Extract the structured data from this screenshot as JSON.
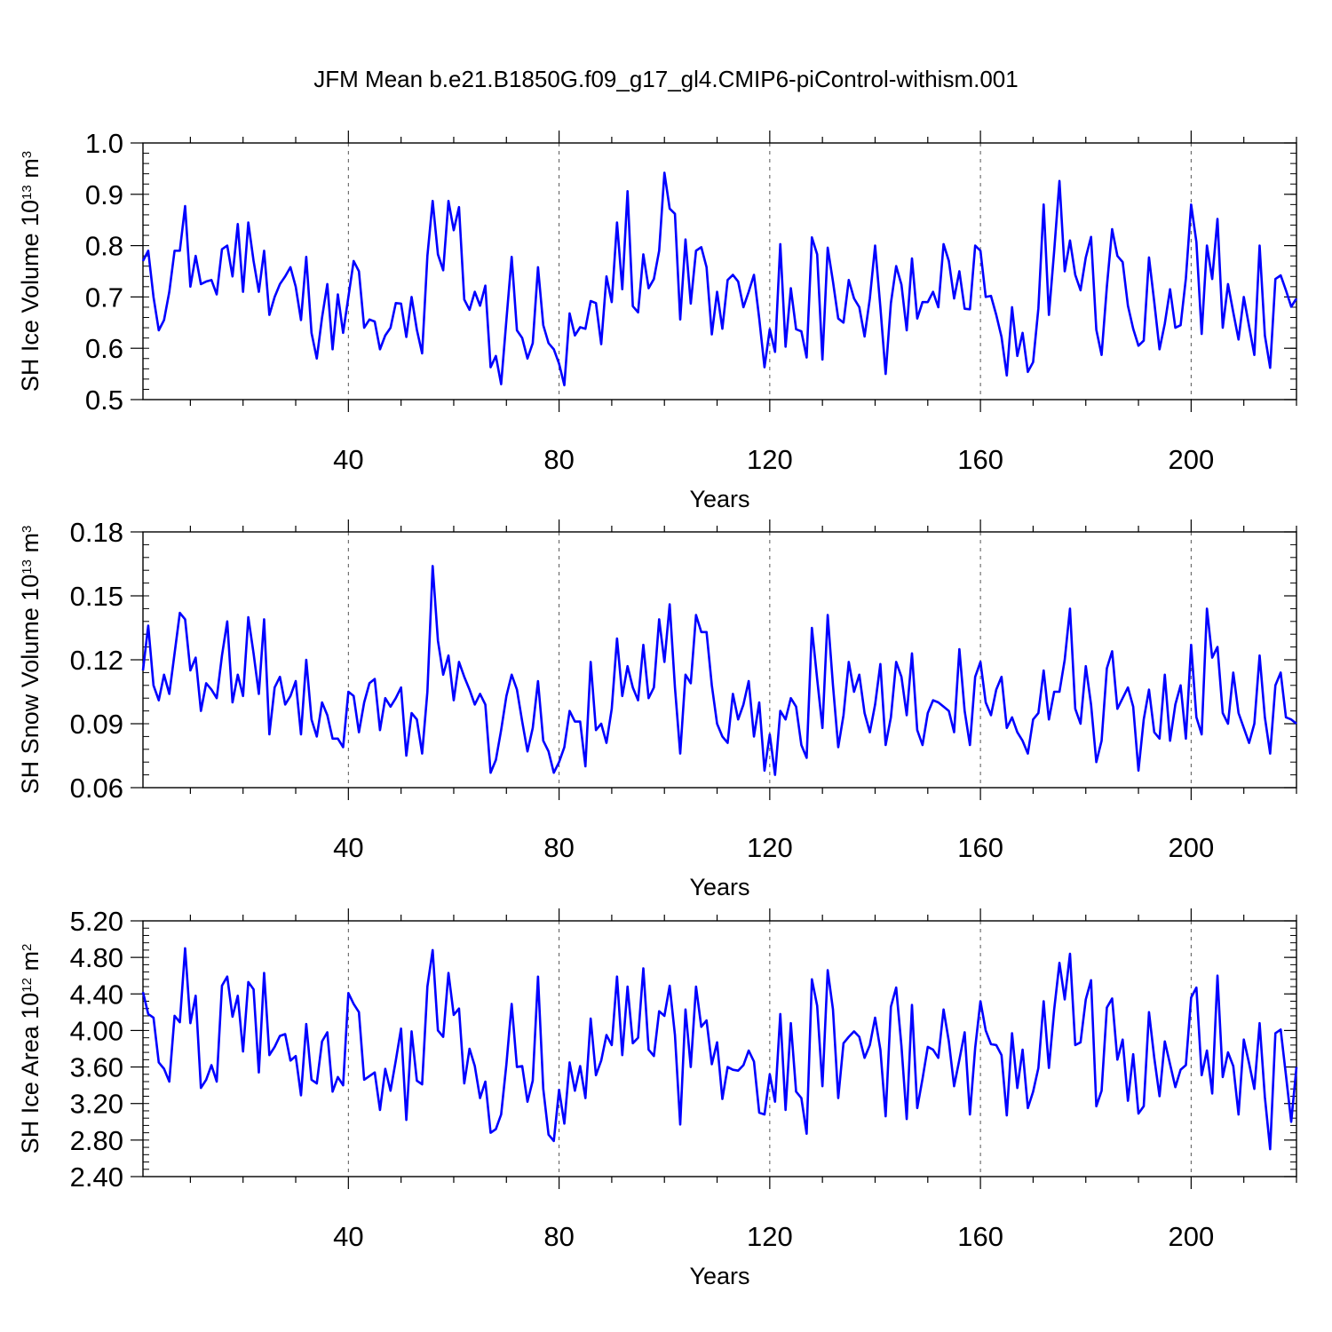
{
  "title": "JFM Mean b.e21.B1850G.f09_g17_gl4.CMIP6-piControl-withism.001",
  "colors": {
    "line": "#0000ff",
    "axis": "#000000",
    "grid": "#555555"
  },
  "chart_data": [
    {
      "type": "line",
      "name": "ice-volume",
      "ylabel": "SH Ice Volume 10",
      "ylabel_exp": "13",
      "ylabel_unit": " m",
      "ylabel_unit_exp": "3",
      "xlabel": "Years",
      "xlim": [
        1,
        220
      ],
      "ylim": [
        0.5,
        1.0
      ],
      "xticks": [
        40,
        80,
        120,
        160,
        200
      ],
      "xtick_labels": [
        "40",
        "80",
        "120",
        "160",
        "200"
      ],
      "yticks": [
        0.5,
        0.6,
        0.7,
        0.8,
        0.9,
        1.0
      ],
      "ytick_labels": [
        "0.5",
        "0.6",
        "0.7",
        "0.8",
        "0.9",
        "1.0"
      ],
      "y_minor_step": 0.02,
      "gridlines_x": "dashed vertical at major x ticks",
      "values": [
        0.77,
        0.79,
        0.7,
        0.635,
        0.655,
        0.71,
        0.79,
        0.79,
        0.877,
        0.72,
        0.78,
        0.725,
        0.73,
        0.733,
        0.705,
        0.793,
        0.8,
        0.74,
        0.842,
        0.71,
        0.845,
        0.77,
        0.71,
        0.79,
        0.665,
        0.7,
        0.725,
        0.74,
        0.758,
        0.72,
        0.655,
        0.778,
        0.63,
        0.58,
        0.66,
        0.725,
        0.598,
        0.705,
        0.63,
        0.7,
        0.77,
        0.75,
        0.64,
        0.656,
        0.652,
        0.598,
        0.625,
        0.64,
        0.688,
        0.687,
        0.622,
        0.7,
        0.636,
        0.59,
        0.78,
        0.887,
        0.783,
        0.752,
        0.887,
        0.83,
        0.875,
        0.695,
        0.675,
        0.71,
        0.683,
        0.722,
        0.563,
        0.585,
        0.53,
        0.655,
        0.778,
        0.635,
        0.62,
        0.58,
        0.61,
        0.758,
        0.645,
        0.61,
        0.598,
        0.57,
        0.528,
        0.668,
        0.625,
        0.641,
        0.638,
        0.692,
        0.688,
        0.608,
        0.74,
        0.69,
        0.845,
        0.715,
        0.906,
        0.682,
        0.67,
        0.783,
        0.717,
        0.735,
        0.79,
        0.942,
        0.872,
        0.862,
        0.656,
        0.812,
        0.687,
        0.79,
        0.797,
        0.758,
        0.627,
        0.71,
        0.638,
        0.733,
        0.743,
        0.73,
        0.68,
        0.71,
        0.743,
        0.658,
        0.563,
        0.637,
        0.593,
        0.803,
        0.603,
        0.717,
        0.637,
        0.633,
        0.582,
        0.816,
        0.783,
        0.578,
        0.796,
        0.73,
        0.658,
        0.65,
        0.733,
        0.697,
        0.68,
        0.623,
        0.697,
        0.8,
        0.68,
        0.55,
        0.688,
        0.76,
        0.724,
        0.635,
        0.775,
        0.658,
        0.69,
        0.69,
        0.71,
        0.68,
        0.803,
        0.77,
        0.697,
        0.75,
        0.677,
        0.676,
        0.8,
        0.79,
        0.7,
        0.702,
        0.665,
        0.622,
        0.547,
        0.68,
        0.585,
        0.63,
        0.554,
        0.573,
        0.678,
        0.88,
        0.665,
        0.79,
        0.926,
        0.75,
        0.81,
        0.743,
        0.713,
        0.777,
        0.817,
        0.636,
        0.587,
        0.72,
        0.832,
        0.78,
        0.768,
        0.683,
        0.638,
        0.605,
        0.615,
        0.777,
        0.69,
        0.598,
        0.648,
        0.715,
        0.64,
        0.645,
        0.736,
        0.88,
        0.807,
        0.628,
        0.8,
        0.735,
        0.852,
        0.64,
        0.725,
        0.67,
        0.617,
        0.7,
        0.643,
        0.587,
        0.8,
        0.625,
        0.562,
        0.735,
        0.742,
        0.713,
        0.681,
        0.697
      ]
    },
    {
      "type": "line",
      "name": "snow-volume",
      "ylabel": "SH Snow Volume 10",
      "ylabel_exp": "13",
      "ylabel_unit": " m",
      "ylabel_unit_exp": "3",
      "xlabel": "Years",
      "xlim": [
        1,
        220
      ],
      "ylim": [
        0.06,
        0.18
      ],
      "xticks": [
        40,
        80,
        120,
        160,
        200
      ],
      "xtick_labels": [
        "40",
        "80",
        "120",
        "160",
        "200"
      ],
      "yticks": [
        0.06,
        0.09,
        0.12,
        0.15,
        0.18
      ],
      "ytick_labels": [
        "0.06",
        "0.09",
        "0.12",
        "0.15",
        "0.18"
      ],
      "y_minor_step": 0.006,
      "gridlines_x": "dashed vertical at major x ticks",
      "values": [
        0.115,
        0.136,
        0.108,
        0.101,
        0.113,
        0.104,
        0.123,
        0.142,
        0.139,
        0.115,
        0.121,
        0.096,
        0.109,
        0.106,
        0.102,
        0.122,
        0.138,
        0.1,
        0.113,
        0.103,
        0.14,
        0.123,
        0.104,
        0.139,
        0.085,
        0.107,
        0.112,
        0.099,
        0.103,
        0.11,
        0.085,
        0.12,
        0.092,
        0.084,
        0.1,
        0.094,
        0.083,
        0.083,
        0.079,
        0.105,
        0.103,
        0.086,
        0.1,
        0.109,
        0.111,
        0.087,
        0.102,
        0.098,
        0.102,
        0.107,
        0.075,
        0.095,
        0.092,
        0.076,
        0.105,
        0.164,
        0.129,
        0.113,
        0.122,
        0.101,
        0.119,
        0.112,
        0.106,
        0.099,
        0.104,
        0.099,
        0.067,
        0.073,
        0.087,
        0.103,
        0.113,
        0.106,
        0.091,
        0.077,
        0.088,
        0.11,
        0.082,
        0.077,
        0.067,
        0.072,
        0.079,
        0.096,
        0.091,
        0.091,
        0.07,
        0.119,
        0.087,
        0.09,
        0.081,
        0.097,
        0.13,
        0.103,
        0.117,
        0.107,
        0.101,
        0.127,
        0.102,
        0.107,
        0.139,
        0.119,
        0.146,
        0.107,
        0.076,
        0.113,
        0.109,
        0.141,
        0.133,
        0.133,
        0.108,
        0.09,
        0.084,
        0.081,
        0.104,
        0.092,
        0.099,
        0.11,
        0.084,
        0.1,
        0.068,
        0.085,
        0.066,
        0.096,
        0.092,
        0.102,
        0.098,
        0.08,
        0.074,
        0.135,
        0.111,
        0.088,
        0.141,
        0.108,
        0.079,
        0.094,
        0.119,
        0.105,
        0.113,
        0.095,
        0.086,
        0.099,
        0.118,
        0.08,
        0.093,
        0.119,
        0.112,
        0.094,
        0.123,
        0.087,
        0.08,
        0.095,
        0.101,
        0.1,
        0.098,
        0.096,
        0.086,
        0.125,
        0.096,
        0.08,
        0.112,
        0.119,
        0.1,
        0.094,
        0.106,
        0.112,
        0.088,
        0.093,
        0.086,
        0.082,
        0.076,
        0.092,
        0.095,
        0.115,
        0.092,
        0.105,
        0.105,
        0.12,
        0.144,
        0.097,
        0.09,
        0.117,
        0.099,
        0.072,
        0.082,
        0.116,
        0.124,
        0.097,
        0.102,
        0.107,
        0.098,
        0.068,
        0.092,
        0.106,
        0.086,
        0.083,
        0.113,
        0.082,
        0.099,
        0.108,
        0.083,
        0.127,
        0.093,
        0.085,
        0.144,
        0.121,
        0.126,
        0.095,
        0.09,
        0.114,
        0.095,
        0.088,
        0.081,
        0.09,
        0.122,
        0.093,
        0.076,
        0.108,
        0.114,
        0.093,
        0.092,
        0.09
      ]
    },
    {
      "type": "line",
      "name": "ice-area",
      "ylabel": "SH Ice Area 10",
      "ylabel_exp": "12",
      "ylabel_unit": " m",
      "ylabel_unit_exp": "2",
      "xlabel": "Years",
      "xlim": [
        1,
        220
      ],
      "ylim": [
        2.4,
        5.2
      ],
      "xticks": [
        40,
        80,
        120,
        160,
        200
      ],
      "xtick_labels": [
        "40",
        "80",
        "120",
        "160",
        "200"
      ],
      "yticks": [
        2.4,
        2.8,
        3.2,
        3.6,
        4.0,
        4.4,
        4.8,
        5.2
      ],
      "ytick_labels": [
        "2.40",
        "2.80",
        "3.20",
        "3.60",
        "4.00",
        "4.40",
        "4.80",
        "5.20"
      ],
      "y_minor_step": 0.08,
      "gridlines_x": "dashed vertical at major x ticks",
      "values": [
        4.42,
        4.18,
        4.14,
        3.65,
        3.58,
        3.44,
        4.16,
        4.09,
        4.9,
        4.08,
        4.38,
        3.37,
        3.46,
        3.62,
        3.44,
        4.49,
        4.59,
        4.15,
        4.38,
        3.77,
        4.53,
        4.45,
        3.54,
        4.63,
        3.73,
        3.82,
        3.94,
        3.96,
        3.67,
        3.72,
        3.29,
        4.07,
        3.46,
        3.42,
        3.88,
        3.98,
        3.33,
        3.49,
        3.4,
        4.41,
        4.29,
        4.2,
        3.46,
        3.5,
        3.54,
        3.13,
        3.58,
        3.34,
        3.67,
        4.02,
        3.02,
        3.99,
        3.45,
        3.41,
        4.48,
        4.88,
        4.0,
        3.93,
        4.63,
        4.17,
        4.24,
        3.42,
        3.8,
        3.61,
        3.26,
        3.44,
        2.88,
        2.92,
        3.08,
        3.63,
        4.29,
        3.6,
        3.61,
        3.22,
        3.45,
        4.59,
        3.36,
        2.86,
        2.79,
        3.35,
        2.98,
        3.65,
        3.34,
        3.61,
        3.26,
        4.13,
        3.51,
        3.67,
        3.95,
        3.84,
        4.59,
        3.73,
        4.48,
        3.86,
        3.92,
        4.68,
        3.79,
        3.72,
        4.21,
        4.16,
        4.49,
        3.95,
        2.97,
        4.23,
        3.6,
        4.48,
        4.04,
        4.11,
        3.63,
        3.87,
        3.25,
        3.6,
        3.57,
        3.56,
        3.62,
        3.78,
        3.66,
        3.1,
        3.08,
        3.52,
        3.22,
        4.18,
        3.13,
        4.08,
        3.33,
        3.26,
        2.87,
        4.56,
        4.27,
        3.39,
        4.66,
        4.23,
        3.26,
        3.86,
        3.93,
        3.99,
        3.93,
        3.7,
        3.84,
        4.14,
        3.79,
        3.06,
        4.26,
        4.47,
        3.83,
        3.03,
        4.28,
        3.15,
        3.47,
        3.82,
        3.79,
        3.7,
        4.23,
        3.88,
        3.39,
        3.68,
        3.98,
        3.08,
        3.81,
        4.32,
        4.0,
        3.85,
        3.84,
        3.73,
        3.07,
        3.97,
        3.37,
        3.79,
        3.15,
        3.33,
        3.59,
        4.32,
        3.59,
        4.23,
        4.74,
        4.34,
        4.84,
        3.84,
        3.87,
        4.34,
        4.55,
        3.17,
        3.34,
        4.25,
        4.35,
        3.68,
        3.9,
        3.23,
        3.74,
        3.09,
        3.17,
        4.2,
        3.7,
        3.28,
        3.88,
        3.63,
        3.38,
        3.57,
        3.62,
        4.36,
        4.47,
        3.51,
        3.78,
        3.31,
        4.6,
        3.49,
        3.76,
        3.61,
        3.08,
        3.9,
        3.64,
        3.36,
        4.08,
        3.27,
        2.7,
        3.97,
        4.01,
        3.51,
        3.0,
        3.6
      ]
    }
  ]
}
